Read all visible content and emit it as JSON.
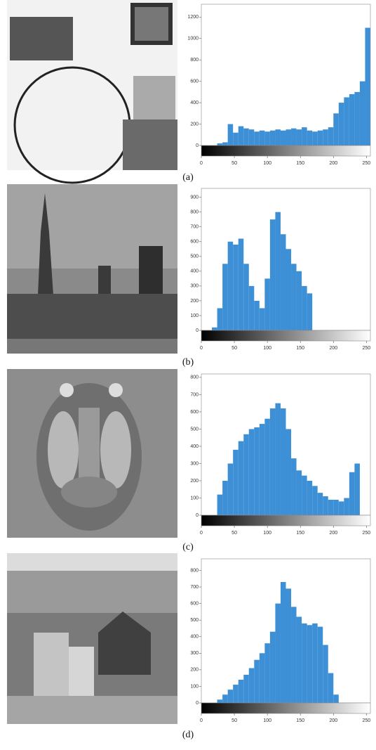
{
  "chart_data": [
    {
      "type": "histogram",
      "caption": "(a)",
      "color": "#3d8fd6",
      "bins": [
        0,
        8,
        16,
        24,
        32,
        40,
        48,
        56,
        64,
        72,
        80,
        88,
        96,
        104,
        112,
        120,
        128,
        136,
        144,
        152,
        160,
        168,
        176,
        184,
        192,
        200,
        208,
        216,
        224,
        232,
        240,
        248,
        256
      ],
      "values": [
        0,
        0,
        0,
        20,
        30,
        200,
        120,
        180,
        160,
        150,
        130,
        140,
        130,
        140,
        150,
        140,
        150,
        160,
        150,
        170,
        140,
        130,
        140,
        150,
        170,
        300,
        400,
        450,
        480,
        500,
        600,
        1100
      ],
      "xlim": [
        0,
        256
      ],
      "xticks": [
        0,
        50,
        100,
        150,
        200,
        250
      ],
      "ylim": [
        0,
        1320
      ],
      "yticks": [
        0,
        200,
        400,
        600,
        800,
        1000,
        1200
      ]
    },
    {
      "type": "histogram",
      "caption": "(b)",
      "color": "#3d8fd6",
      "bins": [
        0,
        8,
        16,
        24,
        32,
        40,
        48,
        56,
        64,
        72,
        80,
        88,
        96,
        104,
        112,
        120,
        128,
        136,
        144,
        152,
        160,
        168,
        176,
        184,
        192,
        200,
        208,
        216,
        224,
        232,
        240,
        248,
        256
      ],
      "values": [
        0,
        0,
        20,
        150,
        450,
        600,
        580,
        620,
        450,
        300,
        200,
        150,
        350,
        750,
        800,
        650,
        550,
        450,
        400,
        300,
        250,
        0,
        0,
        0,
        0,
        0,
        0,
        0,
        0,
        0,
        0,
        0
      ],
      "xlim": [
        0,
        256
      ],
      "xticks": [
        0,
        50,
        100,
        150,
        200,
        250
      ],
      "ylim": [
        0,
        960
      ],
      "yticks": [
        0,
        100,
        200,
        300,
        400,
        500,
        600,
        700,
        800,
        900
      ]
    },
    {
      "type": "histogram",
      "caption": "(c)",
      "color": "#3d8fd6",
      "bins": [
        0,
        8,
        16,
        24,
        32,
        40,
        48,
        56,
        64,
        72,
        80,
        88,
        96,
        104,
        112,
        120,
        128,
        136,
        144,
        152,
        160,
        168,
        176,
        184,
        192,
        200,
        208,
        216,
        224,
        232,
        240,
        248,
        256
      ],
      "values": [
        0,
        0,
        0,
        120,
        200,
        300,
        380,
        430,
        470,
        500,
        510,
        530,
        560,
        620,
        650,
        620,
        500,
        330,
        260,
        230,
        200,
        170,
        130,
        110,
        90,
        90,
        80,
        100,
        250,
        300,
        0,
        0
      ],
      "xlim": [
        0,
        256
      ],
      "xticks": [
        0,
        50,
        100,
        150,
        200,
        250
      ],
      "ylim": [
        0,
        820
      ],
      "yticks": [
        0,
        100,
        200,
        300,
        400,
        500,
        600,
        700,
        800
      ]
    },
    {
      "type": "histogram",
      "caption": "(d)",
      "color": "#3d8fd6",
      "bins": [
        0,
        8,
        16,
        24,
        32,
        40,
        48,
        56,
        64,
        72,
        80,
        88,
        96,
        104,
        112,
        120,
        128,
        136,
        144,
        152,
        160,
        168,
        176,
        184,
        192,
        200,
        208,
        216,
        224,
        232,
        240,
        248,
        256
      ],
      "values": [
        0,
        0,
        0,
        20,
        50,
        80,
        110,
        140,
        170,
        210,
        260,
        300,
        360,
        430,
        600,
        730,
        690,
        580,
        520,
        480,
        470,
        480,
        460,
        350,
        180,
        50,
        0,
        0,
        0,
        0,
        0,
        0
      ],
      "xlim": [
        0,
        256
      ],
      "xticks": [
        0,
        50,
        100,
        150,
        200,
        250
      ],
      "ylim": [
        0,
        870
      ],
      "yticks": [
        0,
        100,
        200,
        300,
        400,
        500,
        600,
        700,
        800
      ]
    }
  ]
}
